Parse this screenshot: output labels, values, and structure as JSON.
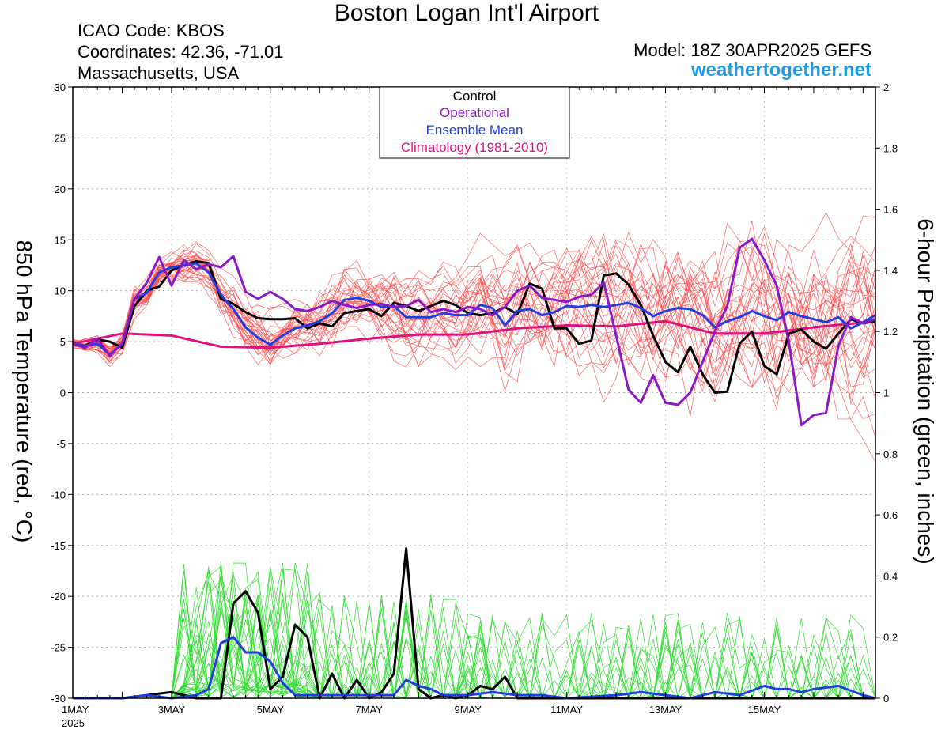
{
  "header": {
    "title": "Boston Logan Int'l Airport",
    "icao": "ICAO Code: KBOS",
    "coords": "Coordinates: 42.36, -71.01",
    "region": "Massachusetts, USA",
    "model": "Model: 18Z 30APR2025 GEFS",
    "site": "weathertogether.net"
  },
  "chart_data": {
    "type": "line",
    "ylabel_left": "850 hPa Temperature (red, °C)",
    "ylabel_right": "6-hour Precipitation (green, inches)",
    "y_left_range": [
      -30,
      30
    ],
    "y_left_ticks": [
      "30",
      "25",
      "20",
      "15",
      "10",
      "5",
      "0",
      "-5",
      "-10",
      "-15",
      "-20",
      "-25",
      "-30"
    ],
    "y_right_range": [
      0,
      2
    ],
    "y_right_ticks": [
      "2",
      "1.8",
      "1.6",
      "1.4",
      "1.2",
      "1",
      "0.8",
      "0.6",
      "0.4",
      "0.2",
      "0"
    ],
    "x_range_days": [
      0,
      16.25
    ],
    "x_ticks": [
      {
        "day": 0,
        "label": "1MAY",
        "sub": "2025"
      },
      {
        "day": 2,
        "label": "3MAY"
      },
      {
        "day": 4,
        "label": "5MAY"
      },
      {
        "day": 6,
        "label": "7MAY"
      },
      {
        "day": 8,
        "label": "9MAY"
      },
      {
        "day": 10,
        "label": "11MAY"
      },
      {
        "day": 12,
        "label": "13MAY"
      },
      {
        "day": 14,
        "label": "15MAY"
      }
    ],
    "grid": true,
    "legend": {
      "placement": "top-center",
      "entries": [
        {
          "label": "Control",
          "color": "#000000"
        },
        {
          "label": "Operational",
          "color": "#8a17c9"
        },
        {
          "label": "Ensemble Mean",
          "color": "#1f3fe0"
        },
        {
          "label": "Climatology (1981-2010)",
          "color": "#e0117f"
        }
      ]
    },
    "colors": {
      "member_temp": "#ff4a4a",
      "member_precip": "#33dd33",
      "control": "#000000",
      "operational": "#8a17c9",
      "mean": "#1f3fe0",
      "climatology": "#e0117f"
    },
    "temperature_series": [
      {
        "role": "climatology",
        "x": [
          0,
          1,
          2,
          3,
          4,
          5,
          6,
          7,
          8,
          9,
          10,
          11,
          12,
          13,
          14,
          15,
          16.25
        ],
        "y": [
          4.8,
          5.8,
          5.6,
          4.5,
          4.4,
          4.8,
          5.3,
          5.7,
          5.7,
          6.3,
          6.6,
          6.5,
          7.0,
          5.8,
          5.8,
          6.4,
          7.0
        ]
      },
      {
        "role": "control",
        "x": [
          0,
          0.25,
          0.5,
          0.75,
          1,
          1.25,
          1.5,
          1.75,
          2,
          2.25,
          2.5,
          2.75,
          3,
          3.25,
          3.5,
          3.75,
          4,
          4.25,
          4.5,
          4.75,
          5,
          5.25,
          5.5,
          5.75,
          6,
          6.25,
          6.5,
          6.75,
          7,
          7.25,
          7.5,
          7.75,
          8,
          8.25,
          8.5,
          8.75,
          9,
          9.25,
          9.5,
          9.75,
          10,
          10.25,
          10.5,
          10.75,
          11,
          11.25,
          11.5,
          11.75,
          12,
          12.25,
          12.5,
          12.75,
          13,
          13.25,
          13.5,
          13.75,
          14,
          14.25,
          14.5,
          14.75,
          15,
          15.25,
          15.5,
          15.75,
          16,
          16.25
        ],
        "y": [
          4.8,
          4.6,
          5.2,
          5.0,
          4.4,
          8.5,
          10.0,
          10.4,
          12.0,
          12.5,
          12.9,
          12.7,
          9.2,
          8.7,
          7.9,
          7.3,
          7.2,
          7.2,
          7.3,
          6.3,
          6.8,
          6.5,
          7.8,
          8.0,
          8.2,
          7.5,
          8.8,
          8.5,
          8.0,
          8.5,
          9.0,
          8.6,
          7.8,
          7.6,
          7.8,
          8.4,
          7.7,
          10.7,
          10.2,
          6.3,
          6.3,
          4.8,
          5.1,
          11.5,
          11.7,
          10.6,
          8.6,
          5.6,
          3.0,
          2.0,
          4.5,
          1.8,
          0.0,
          0.1,
          4.8,
          6.0,
          2.6,
          1.8,
          5.8,
          6.2,
          5.0,
          4.3,
          5.8,
          7.2,
          6.8,
          7.0
        ]
      },
      {
        "role": "mean",
        "x": [
          0,
          0.25,
          0.5,
          0.75,
          1,
          1.25,
          1.5,
          1.75,
          2,
          2.25,
          2.5,
          2.75,
          3,
          3.25,
          3.5,
          3.75,
          4,
          4.25,
          4.5,
          4.75,
          5,
          5.25,
          5.5,
          5.75,
          6,
          6.25,
          6.5,
          6.75,
          7,
          7.25,
          7.5,
          7.75,
          8,
          8.25,
          8.5,
          8.75,
          9,
          9.25,
          9.5,
          9.75,
          10,
          10.25,
          10.5,
          10.75,
          11,
          11.25,
          11.5,
          11.75,
          12,
          12.25,
          12.5,
          12.75,
          13,
          13.25,
          13.5,
          13.75,
          14,
          14.25,
          14.5,
          14.75,
          15,
          15.25,
          15.5,
          15.75,
          16,
          16.25
        ],
        "y": [
          4.8,
          4.6,
          4.8,
          3.7,
          4.8,
          9.2,
          9.8,
          11.8,
          12.3,
          12.5,
          12.7,
          11.8,
          9.6,
          8.2,
          6.4,
          5.4,
          4.7,
          5.6,
          6.3,
          6.6,
          7.0,
          7.8,
          9.1,
          9.3,
          9.0,
          8.4,
          8.5,
          7.4,
          7.4,
          7.4,
          7.8,
          7.6,
          7.6,
          8.6,
          8.3,
          6.6,
          8.0,
          8.2,
          7.6,
          7.9,
          8.5,
          8.4,
          8.6,
          8.4,
          8.6,
          8.8,
          8.3,
          7.5,
          8.0,
          8.3,
          8.2,
          7.6,
          6.4,
          7.0,
          7.4,
          8.0,
          7.5,
          7.1,
          7.9,
          7.5,
          7.2,
          6.9,
          7.4,
          6.3,
          6.9,
          7.6
        ]
      },
      {
        "role": "operational",
        "x": [
          0,
          0.25,
          0.5,
          0.75,
          1,
          1.25,
          1.5,
          1.75,
          2,
          2.25,
          2.5,
          2.75,
          3,
          3.25,
          3.5,
          3.75,
          4,
          4.25,
          4.5,
          4.75,
          5,
          5.25,
          5.5,
          5.75,
          6,
          6.25,
          6.5,
          6.75,
          7,
          7.25,
          7.5,
          7.75,
          8,
          8.25,
          8.5,
          8.75,
          9,
          9.25,
          9.5,
          9.75,
          10,
          10.25,
          10.5,
          10.75,
          11,
          11.25,
          11.5,
          11.75,
          12,
          12.25,
          12.5,
          12.75,
          13,
          13.25,
          13.5,
          13.75,
          14,
          14.25,
          14.5,
          14.75,
          15,
          15.25,
          15.5,
          15.75,
          16,
          16.25
        ],
        "y": [
          4.8,
          4.4,
          5.3,
          3.6,
          4.8,
          9.2,
          10.8,
          13.3,
          10.5,
          13.0,
          12.1,
          12.6,
          12.3,
          13.4,
          9.9,
          9.2,
          9.9,
          9.2,
          8.2,
          8.0,
          8.4,
          9.0,
          8.6,
          8.3,
          8.6,
          8.7,
          8.4,
          8.5,
          9.1,
          7.9,
          8.2,
          7.9,
          8.4,
          8.2,
          7.6,
          8.4,
          10.0,
          10.5,
          9.3,
          9.1,
          8.9,
          9.4,
          9.6,
          10.8,
          5.6,
          0.3,
          -1.0,
          1.7,
          -1.0,
          -1.2,
          0.0,
          3.0,
          6.0,
          8.5,
          14.2,
          15.1,
          13.0,
          10.5,
          4.9,
          -3.2,
          -2.2,
          -2.0,
          4.6,
          7.4,
          6.8,
          7.2
        ]
      },
      {
        "role": "member"
      }
    ],
    "precip_series_in": {
      "control": {
        "x": [
          0,
          0.5,
          1,
          1.5,
          2,
          2.5,
          3,
          3.25,
          3.5,
          3.75,
          4,
          4.25,
          4.5,
          4.75,
          5,
          5.25,
          5.5,
          5.75,
          6,
          6.25,
          6.5,
          6.75,
          7,
          7.25,
          7.5,
          7.75,
          8,
          8.25,
          8.5,
          8.75,
          9,
          9.25,
          9.5,
          9.75,
          10,
          16.25
        ],
        "y": [
          0,
          0,
          0,
          0.01,
          0.02,
          0.0,
          0.0,
          0.31,
          0.35,
          0.28,
          0.03,
          0.07,
          0.24,
          0.2,
          0.0,
          0.08,
          0.0,
          0.06,
          0.0,
          0.02,
          0.08,
          0.49,
          0.03,
          0.0,
          0.01,
          0.0,
          0.01,
          0.04,
          0.03,
          0.07,
          0.0,
          0.0,
          0.0,
          0.0,
          0.0,
          0.0
        ]
      },
      "mean": {
        "x": [
          0,
          0.5,
          1,
          1.5,
          2,
          2.5,
          2.75,
          3,
          3.25,
          3.5,
          3.75,
          4,
          4.25,
          4.5,
          4.75,
          5,
          5.5,
          6,
          6.5,
          6.75,
          7,
          7.25,
          7.5,
          8,
          8.5,
          9,
          9.5,
          10,
          11,
          11.5,
          12,
          12.5,
          13,
          13.5,
          14,
          14.25,
          14.5,
          14.75,
          15,
          15.5,
          16,
          16.25
        ],
        "y": [
          0,
          0,
          0,
          0.01,
          0.0,
          0.01,
          0.03,
          0.18,
          0.2,
          0.15,
          0.15,
          0.12,
          0.05,
          0.01,
          0.01,
          0.01,
          0.01,
          0.01,
          0.01,
          0.06,
          0.04,
          0.03,
          0.01,
          0.01,
          0.02,
          0.01,
          0.01,
          0.0,
          0.01,
          0.02,
          0.01,
          0.0,
          0.02,
          0.01,
          0.04,
          0.03,
          0.03,
          0.02,
          0.03,
          0.04,
          0.01,
          0.0
        ]
      }
    }
  }
}
